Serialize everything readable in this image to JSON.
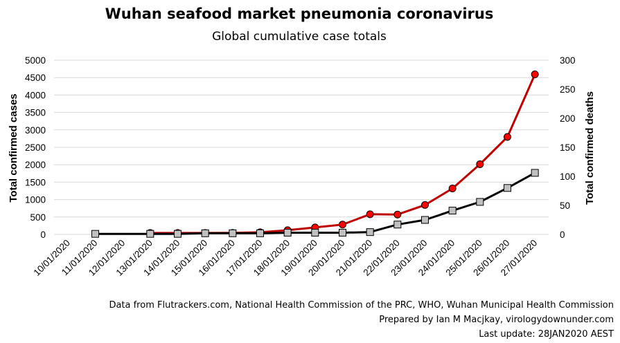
{
  "chart_data": {
    "type": "line",
    "title": "Wuhan seafood market pneumonia coronavirus",
    "subtitle": "Global cumulative case totals",
    "ylabel": "Total confirmed cases",
    "y2label": "Total confirmed deaths",
    "ylim": [
      0,
      5000
    ],
    "y2lim": [
      0,
      300
    ],
    "yticks": [
      0,
      500,
      1000,
      1500,
      2000,
      2500,
      3000,
      3500,
      4000,
      4500,
      5000
    ],
    "y2ticks": [
      0,
      50,
      100,
      150,
      200,
      250,
      300
    ],
    "categories": [
      "10/01/2020",
      "11/01/2020",
      "12/01/2020",
      "13/01/2020",
      "14/01/2020",
      "15/01/2020",
      "16/01/2020",
      "17/01/2020",
      "18/01/2020",
      "19/01/2020",
      "20/01/2020",
      "21/01/2020",
      "22/01/2020",
      "23/01/2020",
      "24/01/2020",
      "25/01/2020",
      "26/01/2020",
      "27/01/2020"
    ],
    "grid": true,
    "series": [
      {
        "axis": "left",
        "color": "#c00000",
        "marker": "circle",
        "marker_fill": "#ff0000",
        "values": [
          null,
          null,
          null,
          41,
          41,
          41,
          45,
          62,
          121,
          201,
          282,
          579,
          571,
          846,
          1320,
          2014,
          2798,
          4593
        ]
      },
      {
        "axis": "right",
        "color": "#000000",
        "marker": "square",
        "marker_fill": "#c0c0c0",
        "values": [
          null,
          1,
          null,
          1,
          1,
          2,
          2,
          2,
          3,
          3,
          3,
          4,
          17,
          25,
          41,
          56,
          80,
          106
        ]
      }
    ]
  },
  "footer": {
    "line1": "Data from Flutrackers.com, National Health Commission of the PRC, WHO, Wuhan Municipal Health Commission",
    "line2": "Prepared by Ian M Macjkay, virologydownunder.com",
    "line3": "Last update: 28JAN2020 AEST"
  }
}
